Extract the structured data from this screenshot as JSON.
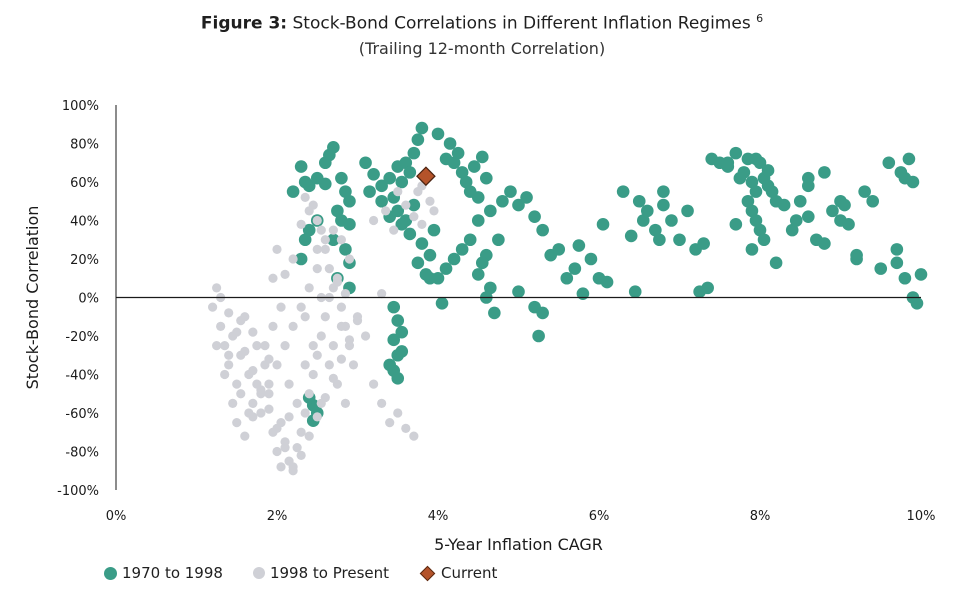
{
  "chart_data": {
    "type": "scatter",
    "figure_label": "Figure 3:",
    "title": "Stock-Bond Correlations in Different Inflation Regimes",
    "title_footnote": "6",
    "subtitle": "(Trailing 12-month Correlation)",
    "xlabel": "5-Year Inflation CAGR",
    "ylabel": "Stock-Bond Correlation",
    "xlim": [
      0,
      10
    ],
    "ylim": [
      -100,
      100
    ],
    "x_ticks": [
      0,
      2,
      4,
      6,
      8,
      10
    ],
    "y_ticks": [
      -100,
      -80,
      -60,
      -40,
      -20,
      0,
      20,
      40,
      60,
      80,
      100
    ],
    "x_tick_labels": [
      "0%",
      "2%",
      "4%",
      "6%",
      "8%",
      "10%"
    ],
    "y_tick_labels": [
      "-100%",
      "-80%",
      "-60%",
      "-40%",
      "-20%",
      "0%",
      "20%",
      "40%",
      "60%",
      "80%",
      "100%"
    ],
    "legend_position": "bottom-left",
    "grid": false,
    "series": [
      {
        "name": "1970 to 1998",
        "color": "#3a9c87",
        "points": [
          [
            2.3,
            68
          ],
          [
            2.2,
            55
          ],
          [
            2.35,
            60
          ],
          [
            2.4,
            58
          ],
          [
            2.5,
            62
          ],
          [
            2.6,
            59
          ],
          [
            2.65,
            74
          ],
          [
            2.7,
            78
          ],
          [
            2.6,
            70
          ],
          [
            2.8,
            62
          ],
          [
            2.85,
            55
          ],
          [
            2.9,
            50
          ],
          [
            2.75,
            45
          ],
          [
            2.8,
            40
          ],
          [
            2.9,
            38
          ],
          [
            2.7,
            30
          ],
          [
            2.85,
            25
          ],
          [
            2.9,
            18
          ],
          [
            2.75,
            10
          ],
          [
            2.9,
            5
          ],
          [
            2.35,
            30
          ],
          [
            2.4,
            35
          ],
          [
            2.3,
            20
          ],
          [
            2.5,
            40
          ],
          [
            2.45,
            -56
          ],
          [
            2.5,
            -60
          ],
          [
            2.4,
            -52
          ],
          [
            2.45,
            -64
          ],
          [
            3.1,
            70
          ],
          [
            3.2,
            64
          ],
          [
            3.3,
            58
          ],
          [
            3.15,
            55
          ],
          [
            3.4,
            62
          ],
          [
            3.5,
            68
          ],
          [
            3.3,
            50
          ],
          [
            3.45,
            52
          ],
          [
            3.55,
            60
          ],
          [
            3.6,
            70
          ],
          [
            3.7,
            75
          ],
          [
            3.75,
            82
          ],
          [
            3.8,
            88
          ],
          [
            3.65,
            65
          ],
          [
            3.5,
            45
          ],
          [
            3.4,
            42
          ],
          [
            3.6,
            40
          ],
          [
            3.7,
            48
          ],
          [
            3.55,
            38
          ],
          [
            3.65,
            33
          ],
          [
            3.8,
            28
          ],
          [
            3.75,
            18
          ],
          [
            3.85,
            12
          ],
          [
            3.9,
            22
          ],
          [
            3.95,
            35
          ],
          [
            3.45,
            -38
          ],
          [
            3.5,
            -30
          ],
          [
            3.45,
            -22
          ],
          [
            3.55,
            -18
          ],
          [
            3.5,
            -42
          ],
          [
            3.4,
            -35
          ],
          [
            3.55,
            -28
          ],
          [
            3.5,
            -12
          ],
          [
            3.45,
            -5
          ],
          [
            4.0,
            85
          ],
          [
            4.1,
            72
          ],
          [
            4.15,
            80
          ],
          [
            4.2,
            70
          ],
          [
            4.25,
            75
          ],
          [
            4.3,
            65
          ],
          [
            4.35,
            60
          ],
          [
            4.4,
            55
          ],
          [
            4.5,
            52
          ],
          [
            4.45,
            68
          ],
          [
            4.55,
            73
          ],
          [
            4.6,
            62
          ],
          [
            4.65,
            45
          ],
          [
            4.5,
            40
          ],
          [
            4.4,
            30
          ],
          [
            4.3,
            25
          ],
          [
            4.2,
            20
          ],
          [
            4.1,
            15
          ],
          [
            4.0,
            10
          ],
          [
            4.05,
            -3
          ],
          [
            3.9,
            10
          ],
          [
            4.6,
            22
          ],
          [
            4.5,
            12
          ],
          [
            4.55,
            18
          ],
          [
            4.65,
            5
          ],
          [
            4.7,
            -8
          ],
          [
            4.6,
            0
          ],
          [
            4.75,
            30
          ],
          [
            4.8,
            50
          ],
          [
            4.9,
            55
          ],
          [
            5.0,
            48
          ],
          [
            5.1,
            52
          ],
          [
            5.2,
            42
          ],
          [
            5.3,
            35
          ],
          [
            5.4,
            22
          ],
          [
            5.0,
            3
          ],
          [
            5.2,
            -5
          ],
          [
            5.25,
            -20
          ],
          [
            5.3,
            -8
          ],
          [
            5.5,
            25
          ],
          [
            5.6,
            10
          ],
          [
            5.7,
            15
          ],
          [
            5.75,
            27
          ],
          [
            5.8,
            2
          ],
          [
            5.9,
            20
          ],
          [
            6.0,
            10
          ],
          [
            6.1,
            8
          ],
          [
            6.05,
            38
          ],
          [
            6.3,
            55
          ],
          [
            6.4,
            32
          ],
          [
            6.5,
            50
          ],
          [
            6.55,
            40
          ],
          [
            6.6,
            45
          ],
          [
            6.7,
            35
          ],
          [
            6.8,
            48
          ],
          [
            6.9,
            40
          ],
          [
            7.0,
            30
          ],
          [
            7.1,
            45
          ],
          [
            7.2,
            25
          ],
          [
            7.3,
            28
          ],
          [
            7.25,
            3
          ],
          [
            7.35,
            5
          ],
          [
            6.45,
            3
          ],
          [
            6.8,
            55
          ],
          [
            6.75,
            30
          ],
          [
            7.4,
            72
          ],
          [
            7.5,
            70
          ],
          [
            7.6,
            68
          ],
          [
            7.7,
            75
          ],
          [
            7.8,
            65
          ],
          [
            7.85,
            72
          ],
          [
            7.9,
            60
          ],
          [
            7.95,
            55
          ],
          [
            8.0,
            70
          ],
          [
            8.05,
            62
          ],
          [
            8.1,
            58
          ],
          [
            8.2,
            50
          ],
          [
            7.9,
            45
          ],
          [
            7.95,
            40
          ],
          [
            8.0,
            35
          ],
          [
            8.05,
            30
          ],
          [
            7.9,
            25
          ],
          [
            8.2,
            18
          ],
          [
            8.3,
            48
          ],
          [
            8.4,
            35
          ],
          [
            8.5,
            50
          ],
          [
            8.6,
            42
          ],
          [
            8.7,
            30
          ],
          [
            8.8,
            28
          ],
          [
            8.9,
            45
          ],
          [
            9.0,
            40
          ],
          [
            9.1,
            38
          ],
          [
            9.2,
            22
          ],
          [
            9.3,
            55
          ],
          [
            9.4,
            50
          ],
          [
            9.5,
            15
          ],
          [
            9.6,
            70
          ],
          [
            9.7,
            25
          ],
          [
            9.75,
            65
          ],
          [
            9.8,
            62
          ],
          [
            9.85,
            72
          ],
          [
            9.9,
            60
          ],
          [
            9.95,
            -3
          ],
          [
            10.0,
            12
          ],
          [
            9.9,
            0
          ],
          [
            9.8,
            10
          ],
          [
            9.7,
            18
          ],
          [
            8.8,
            65
          ],
          [
            8.6,
            62
          ],
          [
            9.0,
            50
          ],
          [
            9.2,
            20
          ],
          [
            8.6,
            58
          ],
          [
            7.6,
            70
          ],
          [
            7.75,
            62
          ],
          [
            7.95,
            72
          ],
          [
            8.1,
            66
          ],
          [
            8.15,
            55
          ],
          [
            7.85,
            50
          ],
          [
            7.7,
            38
          ],
          [
            8.45,
            40
          ],
          [
            9.05,
            48
          ]
        ]
      },
      {
        "name": "1998 to Present",
        "color": "#cfd0d6",
        "points": [
          [
            1.2,
            -5
          ],
          [
            1.25,
            5
          ],
          [
            1.3,
            -15
          ],
          [
            1.35,
            -25
          ],
          [
            1.4,
            -35
          ],
          [
            1.45,
            -20
          ],
          [
            1.5,
            -45
          ],
          [
            1.55,
            -30
          ],
          [
            1.6,
            -10
          ],
          [
            1.65,
            -40
          ],
          [
            1.7,
            -55
          ],
          [
            1.75,
            -25
          ],
          [
            1.8,
            -60
          ],
          [
            1.85,
            -35
          ],
          [
            1.9,
            -50
          ],
          [
            1.95,
            -70
          ],
          [
            2.0,
            -80
          ],
          [
            2.05,
            -65
          ],
          [
            2.1,
            -75
          ],
          [
            2.15,
            -85
          ],
          [
            2.2,
            -90
          ],
          [
            2.25,
            -78
          ],
          [
            2.3,
            -70
          ],
          [
            2.35,
            -60
          ],
          [
            2.4,
            -50
          ],
          [
            2.45,
            -40
          ],
          [
            2.5,
            -30
          ],
          [
            2.55,
            -20
          ],
          [
            2.6,
            -10
          ],
          [
            2.65,
            0
          ],
          [
            2.7,
            5
          ],
          [
            2.75,
            10
          ],
          [
            2.8,
            -5
          ],
          [
            2.85,
            -15
          ],
          [
            2.9,
            -25
          ],
          [
            1.3,
            0
          ],
          [
            1.4,
            -8
          ],
          [
            1.5,
            -18
          ],
          [
            1.6,
            -28
          ],
          [
            1.7,
            -38
          ],
          [
            1.8,
            -48
          ],
          [
            1.9,
            -58
          ],
          [
            2.0,
            -68
          ],
          [
            2.1,
            -78
          ],
          [
            2.2,
            -88
          ],
          [
            2.3,
            -82
          ],
          [
            2.4,
            -72
          ],
          [
            2.5,
            -62
          ],
          [
            2.6,
            -52
          ],
          [
            2.7,
            -42
          ],
          [
            2.8,
            -32
          ],
          [
            2.9,
            -22
          ],
          [
            3.0,
            -12
          ],
          [
            1.5,
            -65
          ],
          [
            1.6,
            -72
          ],
          [
            1.7,
            -62
          ],
          [
            1.8,
            -50
          ],
          [
            1.9,
            -45
          ],
          [
            2.0,
            -35
          ],
          [
            2.1,
            -25
          ],
          [
            2.2,
            -15
          ],
          [
            2.3,
            -5
          ],
          [
            2.4,
            5
          ],
          [
            2.5,
            15
          ],
          [
            2.6,
            25
          ],
          [
            2.7,
            35
          ],
          [
            2.8,
            30
          ],
          [
            2.9,
            20
          ],
          [
            2.35,
            52
          ],
          [
            2.45,
            48
          ],
          [
            2.5,
            40
          ],
          [
            2.55,
            35
          ],
          [
            2.6,
            30
          ],
          [
            2.4,
            45
          ],
          [
            2.3,
            38
          ],
          [
            2.5,
            25
          ],
          [
            2.2,
            20
          ],
          [
            2.1,
            12
          ],
          [
            2.0,
            25
          ],
          [
            1.95,
            10
          ],
          [
            2.65,
            15
          ],
          [
            2.75,
            8
          ],
          [
            2.85,
            2
          ],
          [
            3.0,
            -10
          ],
          [
            3.1,
            -20
          ],
          [
            3.2,
            -45
          ],
          [
            3.3,
            -55
          ],
          [
            3.4,
            -65
          ],
          [
            3.5,
            -60
          ],
          [
            3.6,
            -68
          ],
          [
            3.7,
            -72
          ],
          [
            3.2,
            40
          ],
          [
            3.35,
            45
          ],
          [
            3.45,
            35
          ],
          [
            3.5,
            55
          ],
          [
            3.6,
            48
          ],
          [
            3.7,
            42
          ],
          [
            3.8,
            58
          ],
          [
            3.9,
            50
          ],
          [
            3.95,
            45
          ],
          [
            3.85,
            62
          ],
          [
            3.75,
            55
          ],
          [
            3.8,
            38
          ],
          [
            3.3,
            2
          ],
          [
            1.25,
            -25
          ],
          [
            1.35,
            -40
          ],
          [
            1.45,
            -55
          ],
          [
            1.55,
            -50
          ],
          [
            1.65,
            -60
          ],
          [
            1.75,
            -45
          ],
          [
            1.85,
            -25
          ],
          [
            1.95,
            -15
          ],
          [
            2.05,
            -5
          ],
          [
            2.15,
            -45
          ],
          [
            2.25,
            -55
          ],
          [
            2.35,
            -35
          ],
          [
            2.45,
            -25
          ],
          [
            2.55,
            -55
          ],
          [
            2.65,
            -35
          ],
          [
            2.75,
            -45
          ],
          [
            2.85,
            -55
          ],
          [
            2.95,
            -35
          ],
          [
            1.4,
            -30
          ],
          [
            1.55,
            -12
          ],
          [
            1.7,
            -18
          ],
          [
            1.9,
            -32
          ],
          [
            2.05,
            -88
          ],
          [
            2.15,
            -62
          ],
          [
            2.35,
            -10
          ],
          [
            2.55,
            0
          ],
          [
            2.7,
            -25
          ],
          [
            2.8,
            -15
          ]
        ]
      },
      {
        "name": "Current",
        "color": "#b4532a",
        "marker": "diamond",
        "points": [
          [
            3.85,
            63
          ]
        ]
      }
    ]
  }
}
